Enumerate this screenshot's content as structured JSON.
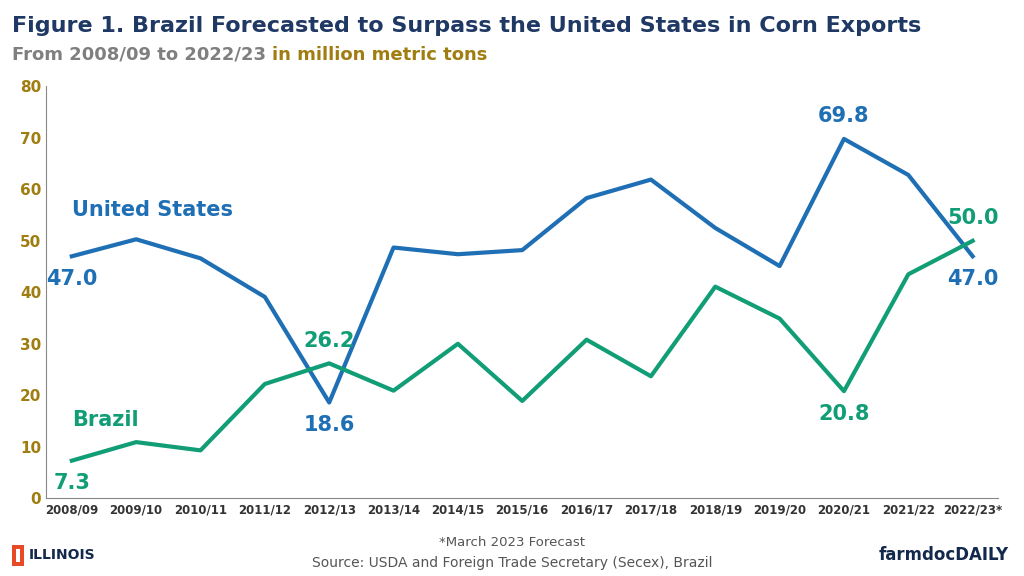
{
  "chart_data": {
    "type": "line",
    "title": "Figure 1. Brazil Forecasted to Surpass the United States in Corn Exports",
    "subtitle": [
      "From 2008/09 to 2022/23",
      "in million metric tons"
    ],
    "categories": [
      "2008/09",
      "2009/10",
      "2010/11",
      "2011/12",
      "2012/13",
      "2013/14",
      "2014/15",
      "2015/16",
      "2016/17",
      "2017/18",
      "2018/19",
      "2019/20",
      "2020/21",
      "2021/22",
      "2022/23*"
    ],
    "series": [
      {
        "name": "United States",
        "color": "#1f6fb5",
        "values": [
          47.0,
          50.3,
          46.6,
          39.1,
          18.6,
          48.7,
          47.4,
          48.2,
          58.3,
          61.9,
          52.5,
          45.1,
          69.8,
          62.8,
          47.0
        ],
        "value_labels": [
          "47.0",
          null,
          null,
          null,
          "18.6",
          null,
          null,
          null,
          null,
          null,
          null,
          null,
          "69.8",
          null,
          "47.0"
        ]
      },
      {
        "name": "Brazil",
        "color": "#119e76",
        "values": [
          7.3,
          10.9,
          9.3,
          22.2,
          26.2,
          20.9,
          30.0,
          18.9,
          30.8,
          23.7,
          41.1,
          34.9,
          20.8,
          43.5,
          50.0
        ],
        "value_labels": [
          "7.3",
          null,
          null,
          null,
          "26.2",
          null,
          null,
          null,
          null,
          null,
          null,
          null,
          "20.8",
          null,
          "50.0"
        ]
      }
    ],
    "data_labels": true,
    "ylim": [
      0,
      80
    ],
    "yticks": [
      0,
      10,
      20,
      30,
      40,
      50,
      60,
      70,
      80
    ],
    "grid": false,
    "footnote": "*March 2023 Forecast",
    "source": "Source: USDA and Foreign Trade Secretary (Secex), Brazil",
    "logo_left": "ILLINOIS",
    "logo_right": "farmdocDAILY"
  }
}
